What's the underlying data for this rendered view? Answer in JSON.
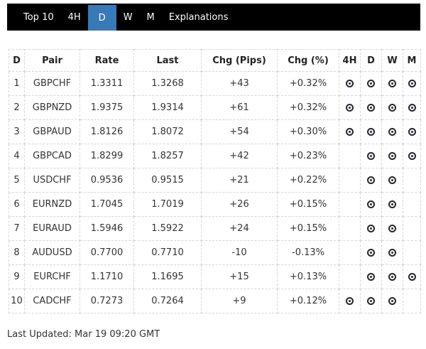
{
  "nav": {
    "items": [
      {
        "label": "Top 10",
        "active": false
      },
      {
        "label": "4H",
        "active": false
      },
      {
        "label": "D",
        "active": true
      },
      {
        "label": "W",
        "active": false
      },
      {
        "label": "M",
        "active": false
      },
      {
        "label": "Explanations",
        "active": false
      }
    ]
  },
  "table": {
    "columns": [
      "D",
      "Pair",
      "Rate",
      "Last",
      "Chg (Pips)",
      "Chg (%)",
      "4H",
      "D",
      "W",
      "M"
    ],
    "signal_columns": [
      "4H",
      "D",
      "W",
      "M"
    ],
    "rows": [
      {
        "num": "1",
        "pair": "GBPCHF",
        "rate": "1.3311",
        "last": "1.3268",
        "chg_pips": "+43",
        "chg_pct": "+0.32%",
        "signals": [
          1,
          1,
          1,
          1
        ]
      },
      {
        "num": "2",
        "pair": "GBPNZD",
        "rate": "1.9375",
        "last": "1.9314",
        "chg_pips": "+61",
        "chg_pct": "+0.32%",
        "signals": [
          1,
          1,
          1,
          1
        ]
      },
      {
        "num": "3",
        "pair": "GBPAUD",
        "rate": "1.8126",
        "last": "1.8072",
        "chg_pips": "+54",
        "chg_pct": "+0.30%",
        "signals": [
          1,
          1,
          1,
          1
        ]
      },
      {
        "num": "4",
        "pair": "GBPCAD",
        "rate": "1.8299",
        "last": "1.8257",
        "chg_pips": "+42",
        "chg_pct": "+0.23%",
        "signals": [
          0,
          1,
          1,
          1
        ]
      },
      {
        "num": "5",
        "pair": "USDCHF",
        "rate": "0.9536",
        "last": "0.9515",
        "chg_pips": "+21",
        "chg_pct": "+0.22%",
        "signals": [
          0,
          1,
          1,
          0
        ]
      },
      {
        "num": "6",
        "pair": "EURNZD",
        "rate": "1.7045",
        "last": "1.7019",
        "chg_pips": "+26",
        "chg_pct": "+0.15%",
        "signals": [
          0,
          1,
          1,
          0
        ]
      },
      {
        "num": "7",
        "pair": "EURAUD",
        "rate": "1.5946",
        "last": "1.5922",
        "chg_pips": "+24",
        "chg_pct": "+0.15%",
        "signals": [
          0,
          1,
          1,
          0
        ]
      },
      {
        "num": "8",
        "pair": "AUDUSD",
        "rate": "0.7700",
        "last": "0.7710",
        "chg_pips": "-10",
        "chg_pct": "-0.13%",
        "signals": [
          0,
          1,
          1,
          0
        ]
      },
      {
        "num": "9",
        "pair": "EURCHF",
        "rate": "1.1710",
        "last": "1.1695",
        "chg_pips": "+15",
        "chg_pct": "+0.13%",
        "signals": [
          0,
          1,
          1,
          1
        ]
      },
      {
        "num": "10",
        "pair": "CADCHF",
        "rate": "0.7273",
        "last": "0.7264",
        "chg_pips": "+9",
        "chg_pct": "+0.12%",
        "signals": [
          1,
          1,
          1,
          0
        ]
      }
    ]
  },
  "footer": {
    "last_updated": "Last Updated: Mar 19 09:20 GMT"
  },
  "icons": {
    "signal": "bullseye-icon"
  },
  "colors": {
    "nav_background": "#000000",
    "active_tab": "#377ab7",
    "text": "#333333",
    "table_border": "#d6d6d6",
    "icon": "#23272e"
  }
}
